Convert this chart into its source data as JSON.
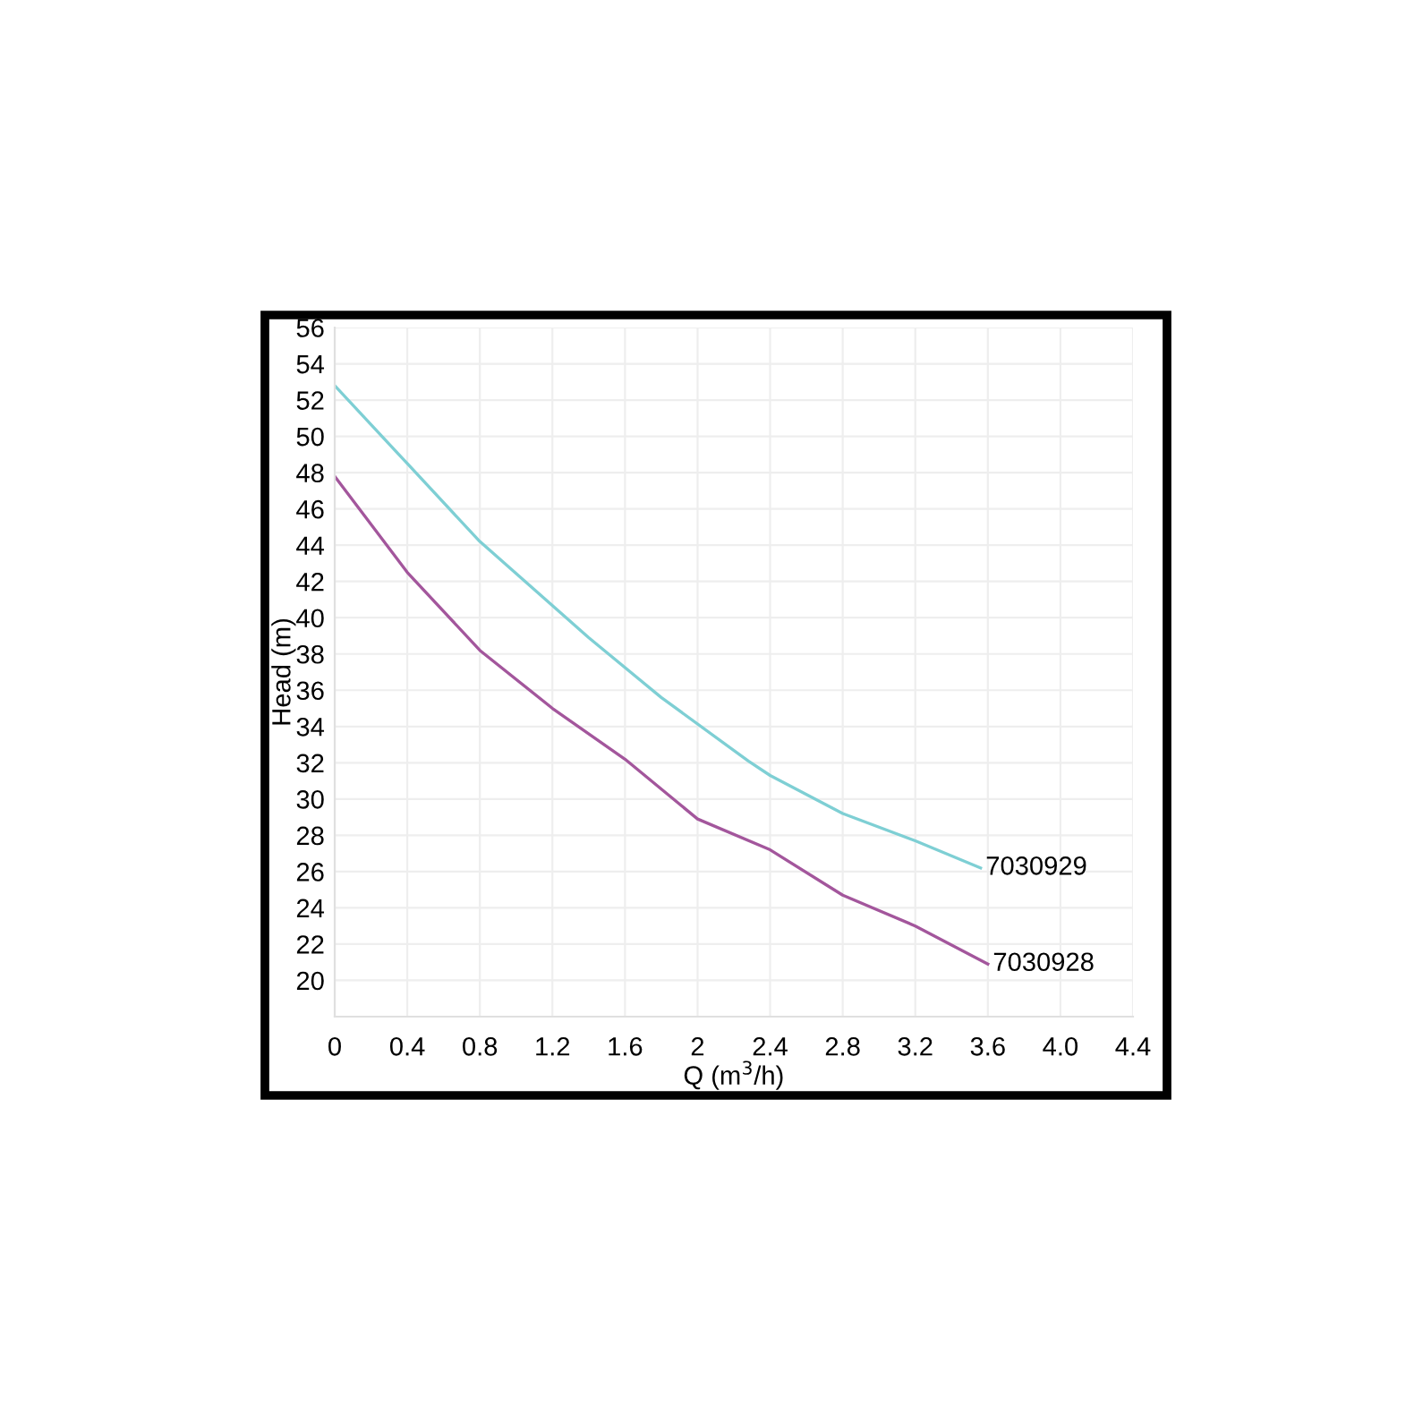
{
  "chart_data": {
    "type": "line",
    "xlabel": "Q (m$^{3}$/h)",
    "ylabel": "Head (m)",
    "series": [
      {
        "name": "7030929",
        "color": "#7ecfd4",
        "x": [
          0,
          0.4,
          0.8,
          1.4,
          1.8,
          2.28,
          2.4,
          2.8,
          3.2,
          3.56
        ],
        "values": [
          52.8,
          48.5,
          44.2,
          38.9,
          35.6,
          32.1,
          31.3,
          29.2,
          27.7,
          26.2
        ]
      },
      {
        "name": "7030928",
        "color": "#a3569c",
        "x": [
          0,
          0.4,
          0.8,
          1.2,
          1.6,
          2.0,
          2.4,
          2.8,
          3.2,
          3.6
        ],
        "values": [
          47.8,
          42.5,
          38.2,
          35.0,
          32.2,
          28.9,
          27.2,
          24.7,
          23.0,
          20.9
        ]
      }
    ],
    "xlim": [
      0,
      4.4
    ],
    "ylim": [
      18,
      56
    ],
    "xticks": [
      0,
      0.4,
      0.8,
      1.2,
      1.6,
      2,
      2.4,
      2.8,
      3.2,
      3.6,
      {
        "value": 4.0,
        "label": "4.0"
      },
      4.4
    ],
    "yticks": [
      20,
      22,
      24,
      26,
      28,
      30,
      32,
      34,
      36,
      38,
      40,
      42,
      44,
      46,
      48,
      50,
      52,
      54,
      56
    ],
    "grid": true,
    "legend": false,
    "marker": "none",
    "line_style": "solid"
  }
}
